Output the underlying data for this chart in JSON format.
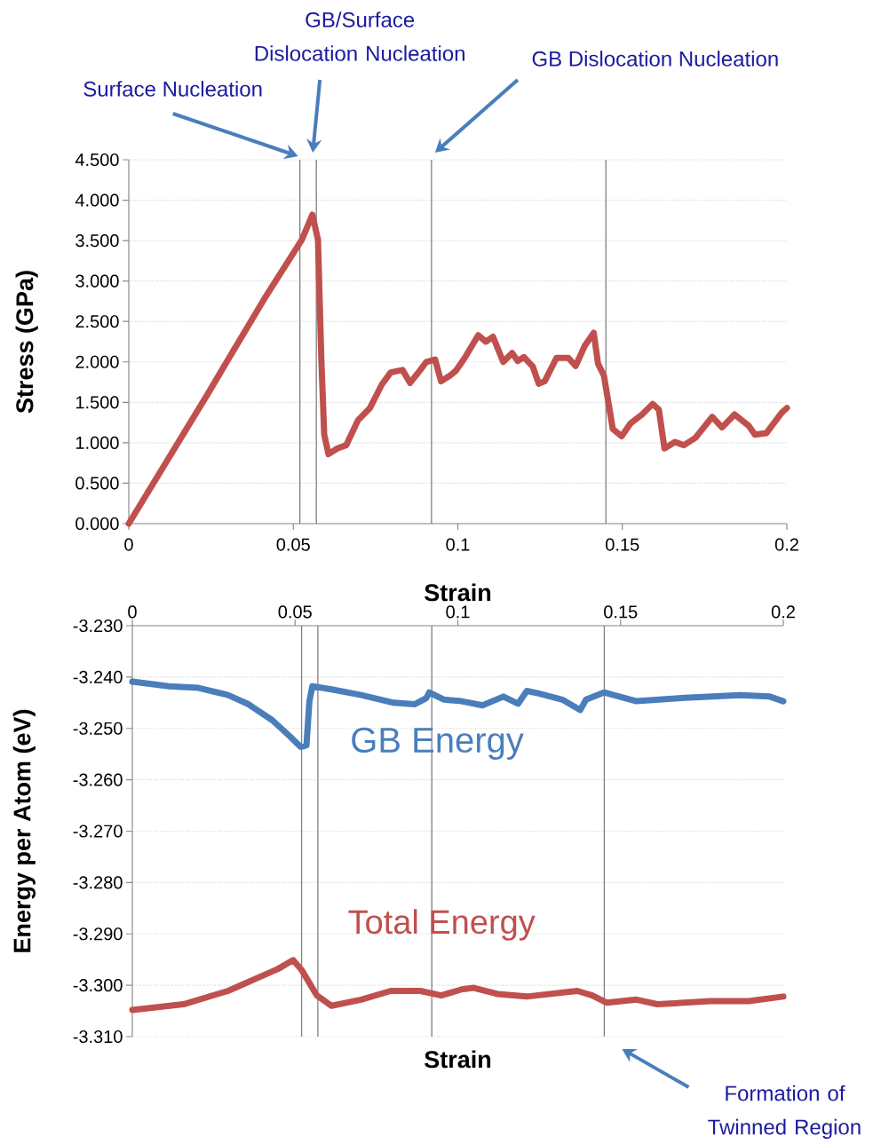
{
  "chart_data": [
    {
      "type": "line",
      "xlabel": "Strain",
      "ylabel": "Stress (GPa)",
      "xlim": [
        0,
        0.2
      ],
      "ylim": [
        0,
        4.5
      ],
      "xticks": [
        0,
        0.05,
        0.1,
        0.15,
        0.2
      ],
      "yticks": [
        {
          "value": 0,
          "label": "0.000"
        },
        {
          "value": 0.5,
          "label": "0.500"
        },
        {
          "value": 1,
          "label": "1.000"
        },
        {
          "value": 1.5,
          "label": "1.500"
        },
        {
          "value": 2,
          "label": "2.000"
        },
        {
          "value": 2.5,
          "label": "2.500"
        },
        {
          "value": 3,
          "label": "3.000"
        },
        {
          "value": 3.5,
          "label": "3.500"
        },
        {
          "value": 4,
          "label": "4.000"
        },
        {
          "value": 4.5,
          "label": "4.500"
        }
      ],
      "grid": "y",
      "marker": "none",
      "line_style": "solid",
      "series": [
        {
          "color": "#c0504d",
          "x": [
            0,
            0.0247,
            0.0283,
            0.0418,
            0.0526,
            0.0558,
            0.0575,
            0.0585,
            0.0594,
            0.0607,
            0.0634,
            0.0661,
            0.0697,
            0.0733,
            0.0769,
            0.0796,
            0.0832,
            0.0855,
            0.0886,
            0.0904,
            0.0931,
            0.0949,
            0.0976,
            0.0994,
            0.1021,
            0.1062,
            0.1085,
            0.1107,
            0.1138,
            0.1165,
            0.1182,
            0.1201,
            0.1228,
            0.1246,
            0.1264,
            0.13,
            0.1336,
            0.1358,
            0.1386,
            0.1413,
            0.1426,
            0.1444,
            0.1471,
            0.1498,
            0.1525,
            0.156,
            0.1592,
            0.1611,
            0.1628,
            0.166,
            0.1687,
            0.1722,
            0.1773,
            0.1803,
            0.1841,
            0.1884,
            0.1903,
            0.1938,
            0.1984,
            0.2
          ],
          "values": [
            0,
            1.65,
            1.9,
            2.82,
            3.51,
            3.82,
            3.51,
            2.05,
            1.1,
            0.86,
            0.93,
            0.97,
            1.28,
            1.43,
            1.72,
            1.87,
            1.9,
            1.74,
            1.9,
            2.0,
            2.03,
            1.76,
            1.83,
            1.89,
            2.05,
            2.33,
            2.25,
            2.31,
            2.0,
            2.11,
            2.01,
            2.06,
            1.94,
            1.73,
            1.76,
            2.05,
            2.05,
            1.95,
            2.2,
            2.36,
            1.98,
            1.83,
            1.17,
            1.08,
            1.24,
            1.35,
            1.48,
            1.41,
            0.93,
            1.01,
            0.97,
            1.06,
            1.32,
            1.19,
            1.35,
            1.21,
            1.1,
            1.12,
            1.37,
            1.43
          ]
        }
      ],
      "ref_lines": [
        {
          "axis": "x",
          "value": 0.052,
          "color": "#808080"
        },
        {
          "axis": "x",
          "value": 0.057,
          "color": "#808080"
        },
        {
          "axis": "x",
          "value": 0.092,
          "color": "#808080"
        },
        {
          "axis": "x",
          "value": 0.145,
          "color": "#808080"
        }
      ],
      "annotations": [
        "Surface Nucleation",
        "GB/Surface Dislocation Nucleation",
        "GB Dislocation Nucleation"
      ]
    },
    {
      "type": "line",
      "xlabel": "Strain",
      "ylabel": "Energy per Atom (eV)",
      "xlim": [
        0,
        0.2
      ],
      "ylim": [
        -3.31,
        -3.23
      ],
      "xticks": [
        0,
        0.05,
        0.1,
        0.15,
        0.2
      ],
      "yticks": [
        {
          "value": -3.31,
          "label": "-3.310"
        },
        {
          "value": -3.3,
          "label": "-3.300"
        },
        {
          "value": -3.29,
          "label": "-3.290"
        },
        {
          "value": -3.28,
          "label": "-3.280"
        },
        {
          "value": -3.27,
          "label": "-3.270"
        },
        {
          "value": -3.26,
          "label": "-3.260"
        },
        {
          "value": -3.25,
          "label": "-3.250"
        },
        {
          "value": -3.24,
          "label": "-3.240"
        },
        {
          "value": -3.23,
          "label": "-3.230"
        }
      ],
      "grid": "y",
      "marker": "none",
      "line_style": "solid",
      "series": [
        {
          "name": "GB Energy",
          "color": "#4a7ebb",
          "x": [
            0,
            0.0112,
            0.0203,
            0.0294,
            0.0357,
            0.043,
            0.0485,
            0.0517,
            0.0535,
            0.0544,
            0.0553,
            0.0612,
            0.0703,
            0.0803,
            0.0867,
            0.0903,
            0.0912,
            0.0958,
            0.1012,
            0.1076,
            0.114,
            0.1185,
            0.1212,
            0.1249,
            0.1321,
            0.1376,
            0.1394,
            0.1449,
            0.1549,
            0.1685,
            0.1867,
            0.1958,
            0.2
          ],
          "values": [
            -3.2409,
            -3.2418,
            -3.2421,
            -3.2435,
            -3.2453,
            -3.2484,
            -3.2516,
            -3.2536,
            -3.2533,
            -3.2447,
            -3.2418,
            -3.2424,
            -3.2435,
            -3.245,
            -3.2453,
            -3.2441,
            -3.243,
            -3.2444,
            -3.2447,
            -3.2455,
            -3.2438,
            -3.2452,
            -3.2427,
            -3.2432,
            -3.2444,
            -3.2464,
            -3.2444,
            -3.243,
            -3.2447,
            -3.2441,
            -3.2435,
            -3.2438,
            -3.2447
          ]
        },
        {
          "name": "Total Energy",
          "color": "#c0504d",
          "x": [
            0,
            0.0157,
            0.0294,
            0.0448,
            0.0494,
            0.0521,
            0.0567,
            0.0612,
            0.0703,
            0.0794,
            0.0885,
            0.0949,
            0.1012,
            0.1049,
            0.1121,
            0.1212,
            0.1367,
            0.1413,
            0.1458,
            0.1549,
            0.1613,
            0.1776,
            0.1894,
            0.2
          ],
          "values": [
            -3.3048,
            -3.3037,
            -3.3011,
            -3.2968,
            -3.2951,
            -3.2971,
            -3.302,
            -3.304,
            -3.3028,
            -3.3011,
            -3.3011,
            -3.302,
            -3.3008,
            -3.3005,
            -3.3017,
            -3.3022,
            -3.3011,
            -3.302,
            -3.3034,
            -3.3028,
            -3.3037,
            -3.3031,
            -3.3031,
            -3.3022
          ]
        }
      ],
      "ref_lines": [
        {
          "axis": "x",
          "value": 0.052,
          "color": "#808080"
        },
        {
          "axis": "x",
          "value": 0.057,
          "color": "#808080"
        },
        {
          "axis": "x",
          "value": 0.092,
          "color": "#808080"
        },
        {
          "axis": "x",
          "value": 0.145,
          "color": "#808080"
        }
      ],
      "annotations": [
        "Formation of Twinned Region"
      ]
    }
  ]
}
